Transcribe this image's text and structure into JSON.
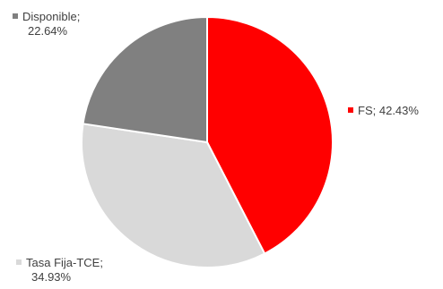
{
  "chart_data": {
    "type": "pie",
    "title": "",
    "slices": [
      {
        "label": "FS",
        "value": 42.43,
        "display": "42.43%",
        "color": "#ff0000"
      },
      {
        "label": "Tasa Fija-TCE",
        "value": 34.93,
        "display": "34.93%",
        "color": "#d9d9d9"
      },
      {
        "label": "Disponible",
        "value": 22.64,
        "display": "22.64%",
        "color": "#808080"
      }
    ]
  }
}
